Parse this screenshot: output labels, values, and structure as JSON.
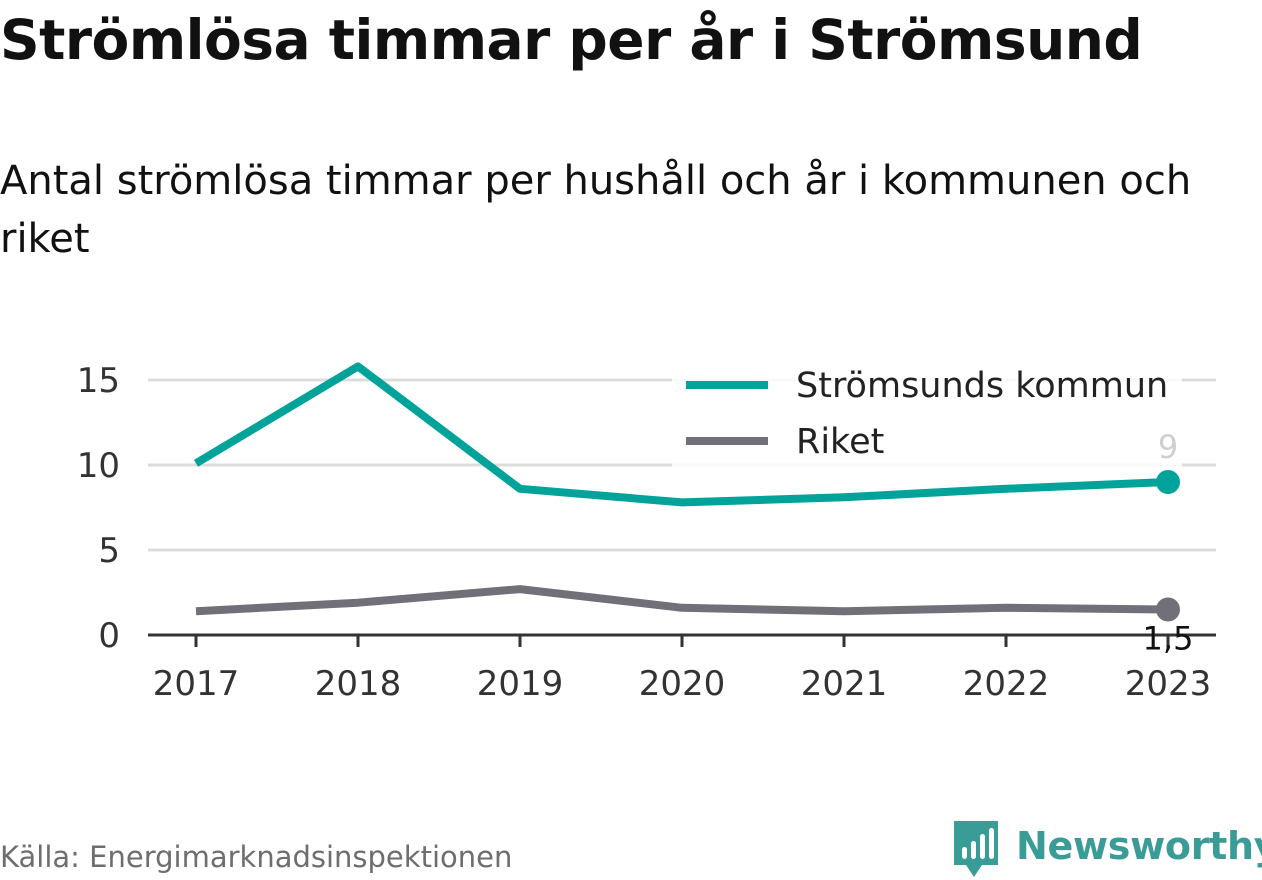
{
  "title": "Strömlösa timmar per år i Strömsund",
  "subtitle": "Antal strömlösa timmar per hushåll och år i kommunen och riket",
  "source": "Källa: Energimarknadsinspektionen",
  "brand": {
    "name": "Newsworthy",
    "icon": "newsworthy-logo-icon",
    "color": "#3a9c96"
  },
  "chart_data": {
    "type": "line",
    "categories": [
      "2017",
      "2018",
      "2019",
      "2020",
      "2021",
      "2022",
      "2023"
    ],
    "y_ticks": [
      "0",
      "5",
      "10",
      "15"
    ],
    "ylim": [
      0,
      17
    ],
    "grid": true,
    "legend_position": "top-right",
    "series": [
      {
        "name": "Strömsunds kommun",
        "color": "#00a39a",
        "values": [
          10.1,
          15.8,
          8.6,
          7.8,
          8.1,
          8.6,
          9.0
        ],
        "end_label": "9"
      },
      {
        "name": "Riket",
        "color": "#707078",
        "values": [
          1.4,
          1.9,
          2.7,
          1.6,
          1.4,
          1.6,
          1.5
        ],
        "end_label": "1,5"
      }
    ]
  }
}
